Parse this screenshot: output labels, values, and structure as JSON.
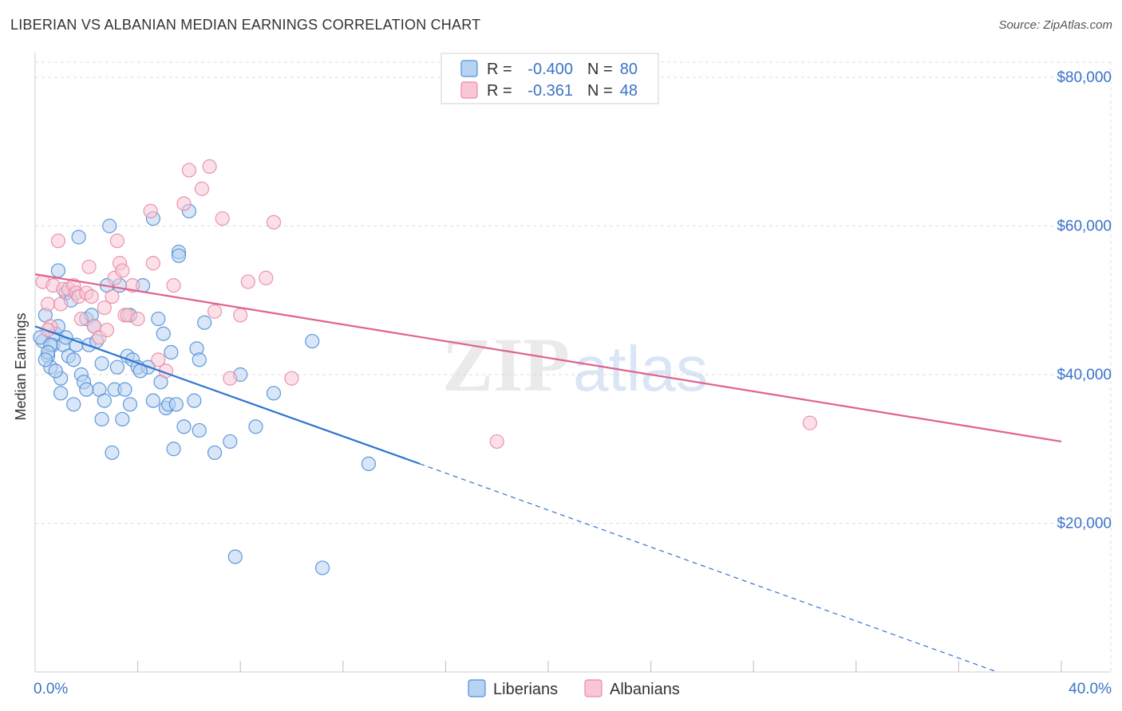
{
  "header": {
    "title": "LIBERIAN VS ALBANIAN MEDIAN EARNINGS CORRELATION CHART",
    "source": "Source: ZipAtlas.com"
  },
  "watermark": {
    "zip": "ZIP",
    "atlas": "atlas"
  },
  "colors": {
    "blue": "#4f8fd8",
    "blue_fill": "#b8d2f1",
    "blue_line": "#2f74d0",
    "pink": "#e98aa6",
    "pink_fill": "#f8c6d5",
    "pink_line": "#e0628e",
    "axis_text": "#3b73c8",
    "grid": "#dddddd"
  },
  "chart_data": {
    "type": "scatter",
    "title": "LIBERIAN VS ALBANIAN MEDIAN EARNINGS CORRELATION CHART",
    "xlabel": "",
    "ylabel": "Median Earnings",
    "xlim": [
      0,
      40
    ],
    "ylim": [
      0,
      80000
    ],
    "x_tick_labels": [
      "0.0%",
      "40.0%"
    ],
    "y_ticks": [
      20000,
      40000,
      60000,
      80000
    ],
    "y_tick_labels": [
      "$20,000",
      "$40,000",
      "$60,000",
      "$80,000"
    ],
    "legend_stats": [
      {
        "r_label": "R =",
        "r_value": "-0.400",
        "n_label": "N =",
        "n_value": "80"
      },
      {
        "r_label": "R =",
        "r_value": "-0.361",
        "n_label": "N =",
        "n_value": "48"
      }
    ],
    "legend": [
      "Liberians",
      "Albanians"
    ],
    "series": [
      {
        "name": "Liberians",
        "color": "#4f8fd8",
        "points": [
          [
            0.3,
            44500
          ],
          [
            0.5,
            42500
          ],
          [
            0.6,
            41000
          ],
          [
            0.7,
            44000
          ],
          [
            0.8,
            45500
          ],
          [
            0.9,
            54000
          ],
          [
            1.0,
            39500
          ],
          [
            0.4,
            48000
          ],
          [
            0.2,
            45000
          ],
          [
            1.2,
            51000
          ],
          [
            1.1,
            44000
          ],
          [
            1.3,
            42500
          ],
          [
            1.4,
            50000
          ],
          [
            1.5,
            42000
          ],
          [
            1.6,
            44000
          ],
          [
            1.7,
            58500
          ],
          [
            1.8,
            40000
          ],
          [
            1.9,
            39000
          ],
          [
            2.0,
            47500
          ],
          [
            2.1,
            44000
          ],
          [
            2.2,
            48000
          ],
          [
            2.3,
            46500
          ],
          [
            2.4,
            44500
          ],
          [
            2.5,
            38000
          ],
          [
            2.6,
            34000
          ],
          [
            2.7,
            36500
          ],
          [
            2.8,
            52000
          ],
          [
            2.9,
            60000
          ],
          [
            3.0,
            29500
          ],
          [
            3.1,
            38000
          ],
          [
            3.3,
            52000
          ],
          [
            3.4,
            34000
          ],
          [
            3.5,
            38000
          ],
          [
            3.6,
            42500
          ],
          [
            3.7,
            48000
          ],
          [
            3.8,
            42000
          ],
          [
            4.0,
            41000
          ],
          [
            4.2,
            52000
          ],
          [
            4.4,
            41000
          ],
          [
            4.6,
            36500
          ],
          [
            4.6,
            61000
          ],
          [
            4.8,
            47500
          ],
          [
            4.9,
            39000
          ],
          [
            5.0,
            45500
          ],
          [
            5.1,
            35500
          ],
          [
            5.4,
            30000
          ],
          [
            5.6,
            56500
          ],
          [
            5.6,
            56000
          ],
          [
            5.3,
            43000
          ],
          [
            5.2,
            36000
          ],
          [
            5.8,
            33000
          ],
          [
            6.0,
            62000
          ],
          [
            6.2,
            36500
          ],
          [
            6.3,
            43500
          ],
          [
            6.4,
            32500
          ],
          [
            6.4,
            42000
          ],
          [
            6.6,
            47000
          ],
          [
            7.0,
            29500
          ],
          [
            7.6,
            31000
          ],
          [
            8.0,
            40000
          ],
          [
            8.6,
            33000
          ],
          [
            9.3,
            37500
          ],
          [
            10.8,
            44500
          ],
          [
            13.0,
            28000
          ],
          [
            7.8,
            15500
          ],
          [
            11.2,
            14000
          ],
          [
            1.0,
            37500
          ],
          [
            0.8,
            40500
          ],
          [
            0.6,
            44000
          ],
          [
            1.2,
            45000
          ],
          [
            2.0,
            38000
          ],
          [
            3.2,
            41000
          ],
          [
            4.1,
            40500
          ],
          [
            0.5,
            43000
          ],
          [
            5.5,
            36000
          ],
          [
            2.6,
            41500
          ],
          [
            3.7,
            36000
          ],
          [
            1.5,
            36000
          ],
          [
            0.9,
            46500
          ],
          [
            0.4,
            42000
          ]
        ],
        "trend": {
          "x0": 0,
          "y0": 46500,
          "x1": 15,
          "y1": 28000,
          "dash_x1": 37.5,
          "dash_y1": 0
        }
      },
      {
        "name": "Albanians",
        "color": "#e98aa6",
        "points": [
          [
            0.3,
            52500
          ],
          [
            0.5,
            49500
          ],
          [
            0.6,
            46500
          ],
          [
            0.7,
            52000
          ],
          [
            0.9,
            58000
          ],
          [
            1.1,
            51500
          ],
          [
            1.3,
            51500
          ],
          [
            1.5,
            52000
          ],
          [
            1.6,
            51000
          ],
          [
            1.7,
            50500
          ],
          [
            1.8,
            47500
          ],
          [
            2.0,
            51000
          ],
          [
            2.1,
            54500
          ],
          [
            2.2,
            50500
          ],
          [
            2.3,
            46500
          ],
          [
            2.5,
            45000
          ],
          [
            2.7,
            49000
          ],
          [
            2.8,
            46000
          ],
          [
            3.0,
            50500
          ],
          [
            3.1,
            53000
          ],
          [
            3.2,
            58000
          ],
          [
            3.3,
            55000
          ],
          [
            3.4,
            54000
          ],
          [
            3.5,
            48000
          ],
          [
            3.6,
            48000
          ],
          [
            3.8,
            52000
          ],
          [
            4.0,
            47500
          ],
          [
            4.5,
            62000
          ],
          [
            4.6,
            55000
          ],
          [
            4.8,
            42000
          ],
          [
            5.1,
            40500
          ],
          [
            5.4,
            52000
          ],
          [
            5.8,
            63000
          ],
          [
            6.0,
            67500
          ],
          [
            6.5,
            65000
          ],
          [
            6.8,
            68000
          ],
          [
            7.0,
            48500
          ],
          [
            7.3,
            61000
          ],
          [
            7.6,
            39500
          ],
          [
            8.0,
            48000
          ],
          [
            8.3,
            52500
          ],
          [
            9.0,
            53000
          ],
          [
            9.3,
            60500
          ],
          [
            10.0,
            39500
          ],
          [
            18.0,
            31000
          ],
          [
            30.2,
            33500
          ],
          [
            0.5,
            46000
          ],
          [
            1.0,
            49500
          ]
        ],
        "trend": {
          "x0": 0,
          "y0": 53500,
          "x1": 40,
          "y1": 31000
        }
      }
    ]
  }
}
